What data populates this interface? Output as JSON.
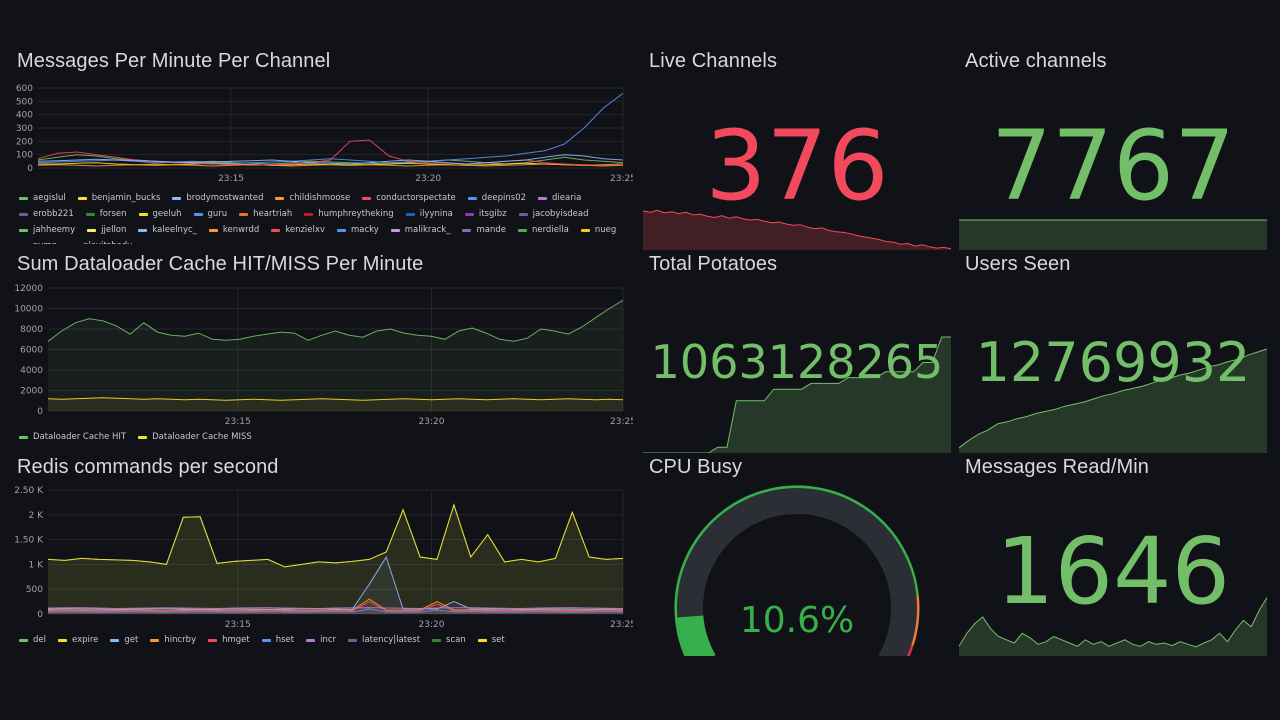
{
  "colors": {
    "background": "#111217",
    "green": "#73bf69",
    "red": "#f2495c",
    "gauge_green": "#37b04b",
    "gauge_orange": "#ed7d31",
    "gauge_red": "#e02f44",
    "gauge_track": "#2b2e35"
  },
  "panels": {
    "messages_per_minute": {
      "title": "Messages Per Minute Per Channel"
    },
    "dataloader_cache": {
      "title": "Sum Dataloader Cache HIT/MISS Per Minute"
    },
    "redis_commands": {
      "title": "Redis commands per second"
    },
    "live_channels": {
      "title": "Live Channels",
      "value": "376"
    },
    "active_channels": {
      "title": "Active channels",
      "value": "7767"
    },
    "total_potatoes": {
      "title": "Total Potatoes",
      "value": "1063128265"
    },
    "users_seen": {
      "title": "Users Seen",
      "value": "12769932"
    },
    "cpu_busy": {
      "title": "CPU Busy",
      "value": "10.6%",
      "percent": 10.6
    },
    "messages_read": {
      "title": "Messages Read/Min",
      "value": "1646"
    }
  },
  "chart_data": [
    {
      "type": "line",
      "panel": "messages_per_minute",
      "title": "Messages Per Minute Per Channel",
      "y_ticks": [
        "600",
        "500",
        "400",
        "300",
        "200",
        "100",
        "0"
      ],
      "ylim": [
        0,
        600
      ],
      "x_ticks": [
        "23:15",
        "23:20",
        "23:25"
      ],
      "legend_placement": "bottom",
      "series": [
        {
          "name": "aegislul",
          "color": "#73bf69",
          "values": [
            60,
            80,
            100,
            90,
            70,
            60,
            50,
            40,
            45,
            50,
            40,
            35,
            30,
            40,
            50,
            45,
            40,
            35,
            30,
            40,
            50,
            60,
            50,
            40,
            30,
            40,
            60,
            80,
            60,
            50,
            40
          ]
        },
        {
          "name": "benjamin_bucks",
          "color": "#fade2a",
          "values": [
            30,
            30,
            35,
            40,
            30,
            25,
            20,
            25,
            30,
            35,
            30,
            25,
            20,
            25,
            30,
            25,
            20,
            25,
            30,
            35,
            30,
            25,
            20,
            25,
            30,
            35,
            30,
            25,
            20,
            25,
            30
          ]
        },
        {
          "name": "brodymostwanted",
          "color": "#5794f2",
          "values": [
            40,
            45,
            50,
            55,
            60,
            50,
            40,
            45,
            50,
            40,
            35,
            40,
            45,
            50,
            60,
            70,
            60,
            50,
            40,
            45,
            50,
            60,
            70,
            80,
            90,
            110,
            130,
            180,
            300,
            450,
            560
          ]
        },
        {
          "name": "childishmoose",
          "color": "#ff9830",
          "values": [
            20,
            25,
            20,
            15,
            20,
            25,
            30,
            25,
            20,
            15,
            20,
            25,
            20,
            15,
            20,
            25,
            30,
            25,
            20,
            15,
            20,
            25,
            20,
            15,
            20,
            25,
            30,
            25,
            20,
            15,
            20
          ]
        },
        {
          "name": "conductorspectate",
          "color": "#f2495c",
          "values": [
            70,
            110,
            120,
            100,
            80,
            60,
            50,
            40,
            35,
            30,
            25,
            20,
            25,
            30,
            40,
            60,
            200,
            210,
            90,
            50,
            40,
            35,
            30,
            40,
            50,
            60,
            40,
            30,
            25,
            20,
            30
          ]
        },
        {
          "name": "deepins02",
          "color": "#8ab8ff",
          "values": [
            50,
            55,
            60,
            65,
            60,
            55,
            50,
            45,
            40,
            45,
            50,
            55,
            60,
            50,
            40,
            35,
            30,
            40,
            50,
            60,
            50,
            40,
            30,
            40,
            50,
            60,
            80,
            100,
            90,
            70,
            60
          ]
        }
      ]
    },
    {
      "type": "line",
      "panel": "dataloader_cache",
      "title": "Sum Dataloader Cache HIT/MISS Per Minute",
      "y_ticks": [
        "12000",
        "10000",
        "8000",
        "6000",
        "4000",
        "2000",
        "0"
      ],
      "ylim": [
        0,
        12000
      ],
      "x_ticks": [
        "23:15",
        "23:20",
        "23:25"
      ],
      "legend_placement": "bottom",
      "series": [
        {
          "name": "Dataloader Cache HIT",
          "color": "#73bf69",
          "values": [
            6800,
            7800,
            8600,
            9000,
            8800,
            8300,
            7500,
            8600,
            7700,
            7400,
            7300,
            7600,
            7000,
            6900,
            7000,
            7300,
            7500,
            7700,
            7600,
            6900,
            7400,
            7800,
            7400,
            7200,
            7800,
            8000,
            7600,
            7400,
            7300,
            7000,
            7800,
            8100,
            7600,
            7000,
            6800,
            7100,
            8000,
            7800,
            7500,
            8200,
            9100,
            10000,
            10800
          ]
        },
        {
          "name": "Dataloader Cache MISS",
          "color": "#fade2a",
          "values": [
            1200,
            1150,
            1200,
            1250,
            1300,
            1250,
            1200,
            1150,
            1200,
            1150,
            1100,
            1150,
            1100,
            1050,
            1100,
            1150,
            1100,
            1050,
            1100,
            1150,
            1200,
            1150,
            1100,
            1050,
            1100,
            1150,
            1200,
            1150,
            1100,
            1150,
            1200,
            1150,
            1100,
            1150,
            1200,
            1150,
            1100,
            1150,
            1200,
            1150,
            1100,
            1150,
            1100
          ]
        }
      ]
    },
    {
      "type": "line",
      "panel": "redis_commands",
      "title": "Redis commands per second",
      "y_ticks": [
        "2.50 K",
        "2 K",
        "1.50 K",
        "1 K",
        "500",
        "0"
      ],
      "ylim": [
        0,
        2500
      ],
      "x_ticks": [
        "23:15",
        "23:20",
        "23:25"
      ],
      "legend_placement": "bottom",
      "series": [
        {
          "name": "del",
          "color": "#73bf69",
          "values": [
            1100,
            1080,
            1120,
            1100,
            1090,
            1080,
            1050,
            1000,
            1950,
            1960,
            1020,
            1060,
            1080,
            1100,
            950,
            1000,
            1050,
            1030,
            1060,
            1100,
            1250,
            2100,
            1150,
            1100,
            2200,
            1150,
            1600,
            1050,
            1100,
            1050,
            1120,
            2050,
            1150,
            1100,
            1120
          ]
        },
        {
          "name": "expire",
          "color": "#fade2a",
          "values": [
            1100,
            1080,
            1120,
            1100,
            1090,
            1080,
            1050,
            1000,
            1950,
            1960,
            1020,
            1060,
            1080,
            1100,
            950,
            1000,
            1050,
            1030,
            1060,
            1100,
            1250,
            2100,
            1150,
            1100,
            2200,
            1150,
            1600,
            1050,
            1100,
            1050,
            1120,
            2050,
            1150,
            1100,
            1120
          ]
        },
        {
          "name": "get",
          "color": "#8ab8ff",
          "values": [
            100,
            110,
            105,
            100,
            95,
            100,
            105,
            110,
            100,
            95,
            100,
            105,
            100,
            95,
            100,
            105,
            110,
            100,
            95,
            600,
            1150,
            100,
            105,
            100,
            250,
            100,
            105,
            100,
            95,
            100,
            105,
            100,
            95,
            100,
            105
          ]
        },
        {
          "name": "hincrby",
          "color": "#ff9830",
          "values": [
            80,
            85,
            80,
            75,
            80,
            85,
            80,
            75,
            80,
            85,
            80,
            75,
            80,
            85,
            80,
            75,
            80,
            85,
            80,
            300,
            80,
            75,
            80,
            250,
            80,
            85,
            80,
            75,
            80,
            85,
            80,
            75,
            80,
            85,
            80
          ]
        },
        {
          "name": "hmget",
          "color": "#f2495c",
          "values": [
            60,
            65,
            60,
            55,
            60,
            65,
            60,
            55,
            60,
            65,
            60,
            55,
            60,
            65,
            60,
            55,
            60,
            65,
            60,
            250,
            60,
            55,
            60,
            200,
            60,
            65,
            60,
            55,
            60,
            65,
            60,
            55,
            60,
            65,
            60
          ]
        },
        {
          "name": "hset",
          "color": "#5794f2",
          "values": [
            40,
            45,
            40,
            35,
            40,
            45,
            40,
            35,
            40,
            45,
            40,
            35,
            40,
            45,
            40,
            35,
            40,
            45,
            40,
            100,
            40,
            35,
            40,
            80,
            40,
            45,
            40,
            35,
            40,
            45,
            40,
            35,
            40,
            45,
            40
          ]
        },
        {
          "name": "incr",
          "color": "#b877d9",
          "values": [
            120,
            125,
            130,
            120,
            110,
            115,
            120,
            125,
            120,
            115,
            110,
            120,
            125,
            130,
            120,
            115,
            110,
            120,
            125,
            130,
            120,
            115,
            110,
            120,
            125,
            130,
            120,
            115,
            110,
            120,
            125,
            130,
            120,
            115,
            110
          ]
        }
      ]
    },
    {
      "type": "area",
      "panel": "live_channels",
      "values": [
        60,
        58,
        61,
        57,
        59,
        56,
        58,
        54,
        55,
        52,
        50,
        53,
        49,
        51,
        48,
        46,
        47,
        44,
        42,
        43,
        40,
        38,
        39,
        35,
        33,
        34,
        30,
        28,
        27,
        25,
        22,
        20,
        18,
        16,
        13,
        12,
        9,
        10,
        6,
        8,
        5,
        3,
        4,
        2
      ],
      "ylim": [
        0,
        100
      ]
    },
    {
      "type": "area",
      "panel": "active_channels",
      "values": [
        100,
        100,
        100,
        100,
        100,
        100,
        100,
        100,
        100,
        100
      ],
      "ylim": [
        0,
        100
      ]
    },
    {
      "type": "area",
      "panel": "total_potatoes",
      "values": [
        0,
        0,
        0,
        0,
        0,
        0,
        0,
        0,
        5,
        5,
        45,
        45,
        45,
        45,
        55,
        55,
        55,
        55,
        60,
        60,
        60,
        60,
        65,
        65,
        65,
        65,
        70,
        70,
        70,
        70,
        78,
        78,
        100,
        100
      ],
      "ylim": [
        0,
        100
      ]
    },
    {
      "type": "area",
      "panel": "users_seen",
      "values": [
        5,
        12,
        18,
        22,
        28,
        30,
        33,
        35,
        38,
        40,
        42,
        45,
        47,
        49,
        52,
        55,
        57,
        60,
        62,
        64,
        67,
        70,
        72,
        75,
        77,
        80,
        83,
        85,
        88,
        90,
        94,
        97,
        100
      ],
      "ylim": [
        0,
        100
      ]
    },
    {
      "type": "area",
      "panel": "messages_read",
      "values": [
        15,
        35,
        50,
        60,
        42,
        30,
        25,
        20,
        35,
        28,
        18,
        22,
        30,
        25,
        20,
        15,
        25,
        18,
        22,
        15,
        20,
        25,
        18,
        15,
        22,
        18,
        20,
        16,
        22,
        18,
        14,
        20,
        25,
        35,
        22,
        40,
        55,
        45,
        70,
        90
      ],
      "ylim": [
        0,
        100
      ]
    }
  ],
  "legends": {
    "messages_per_minute": [
      {
        "name": "aegislul",
        "color": "#73bf69"
      },
      {
        "name": "benjamin_bucks",
        "color": "#fade2a"
      },
      {
        "name": "brodymostwanted",
        "color": "#8ab8ff"
      },
      {
        "name": "childishmoose",
        "color": "#ff9830"
      },
      {
        "name": "conductorspectate",
        "color": "#f2495c"
      },
      {
        "name": "deepins02",
        "color": "#5794f2"
      },
      {
        "name": "diearia",
        "color": "#b877d9"
      },
      {
        "name": "erobb221",
        "color": "#705da0"
      },
      {
        "name": "forsen",
        "color": "#37872d"
      },
      {
        "name": "geeluh",
        "color": "#fade2a"
      },
      {
        "name": "guru",
        "color": "#5794f2"
      },
      {
        "name": "heartriah",
        "color": "#e0752d"
      },
      {
        "name": "humphreytheking",
        "color": "#c4162a"
      },
      {
        "name": "ilyynina",
        "color": "#1f60c4"
      },
      {
        "name": "itsgibz",
        "color": "#8f3bb8"
      },
      {
        "name": "jacobyisdead",
        "color": "#705da0"
      },
      {
        "name": "jahheemy",
        "color": "#73bf69"
      },
      {
        "name": "jjellon",
        "color": "#ffee52"
      },
      {
        "name": "kaleelnyc_",
        "color": "#8ab8ff"
      },
      {
        "name": "kenwrdd",
        "color": "#ff9830"
      },
      {
        "name": "kenzielxv",
        "color": "#f2495c"
      },
      {
        "name": "macky",
        "color": "#5794f2"
      },
      {
        "name": "malikrack_",
        "color": "#ca95e5"
      },
      {
        "name": "mande",
        "color": "#806eb7"
      },
      {
        "name": "nerdiella",
        "color": "#56a64b"
      },
      {
        "name": "nueg",
        "color": "#f2cc0c"
      },
      {
        "name": "nymn",
        "color": "#8ab8ff"
      },
      {
        "name": "playitshady",
        "color": "#ff780a"
      }
    ],
    "dataloader_cache": [
      {
        "name": "Dataloader Cache HIT",
        "color": "#73bf69"
      },
      {
        "name": "Dataloader Cache MISS",
        "color": "#fade2a"
      }
    ],
    "redis_commands": [
      {
        "name": "del",
        "color": "#73bf69"
      },
      {
        "name": "expire",
        "color": "#fade2a"
      },
      {
        "name": "get",
        "color": "#8ab8ff"
      },
      {
        "name": "hincrby",
        "color": "#ff9830"
      },
      {
        "name": "hmget",
        "color": "#f2495c"
      },
      {
        "name": "hset",
        "color": "#5794f2"
      },
      {
        "name": "incr",
        "color": "#b877d9"
      },
      {
        "name": "latency|latest",
        "color": "#705da0"
      },
      {
        "name": "scan",
        "color": "#37872d"
      },
      {
        "name": "set",
        "color": "#fade2a"
      }
    ]
  }
}
